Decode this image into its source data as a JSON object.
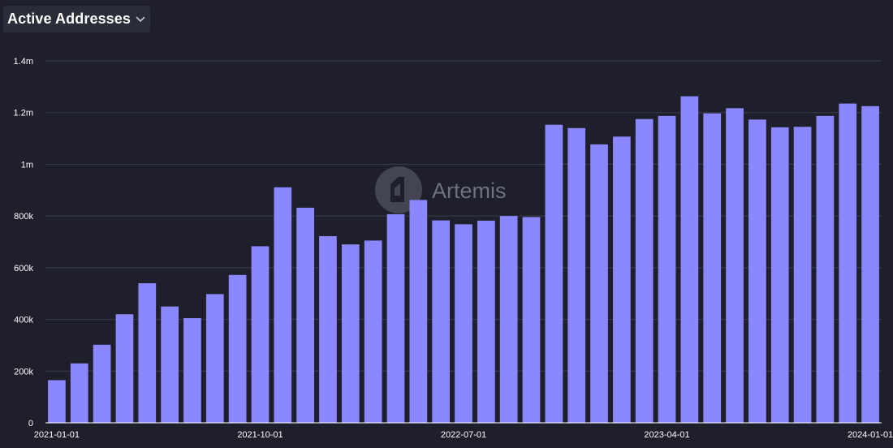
{
  "header": {
    "metric_label": "Active Addresses"
  },
  "icons": {
    "dropdown": "chevron-down-icon",
    "watermark_logo": "artemis-logo-icon"
  },
  "watermark": {
    "text": "Artemis"
  },
  "colors": {
    "background": "#1e1f2a",
    "bar": "#8a87ff",
    "grid": "#3a3c4a",
    "text": "#ffffff"
  },
  "chart_data": {
    "type": "bar",
    "title": "Active Addresses",
    "xlabel": "",
    "ylabel": "",
    "grid": true,
    "legend": "none",
    "ylim": [
      0,
      1400000
    ],
    "yticks": [
      0,
      200000,
      400000,
      600000,
      800000,
      1000000,
      1200000,
      1400000
    ],
    "ytick_labels": [
      "0",
      "200k",
      "400k",
      "600k",
      "800k",
      "1m",
      "1.2m",
      "1.4m"
    ],
    "x_tick_labels": [
      {
        "category": "2021-01-01",
        "label": "2021-01-01"
      },
      {
        "category": "2021-10-01",
        "label": "2021-10-01"
      },
      {
        "category": "2022-07-01",
        "label": "2022-07-01"
      },
      {
        "category": "2023-04-01",
        "label": "2023-04-01"
      },
      {
        "category": "2024-01-01",
        "label": "2024-01-01"
      }
    ],
    "categories": [
      "2021-01-01",
      "2021-02-01",
      "2021-03-01",
      "2021-04-01",
      "2021-05-01",
      "2021-06-01",
      "2021-07-01",
      "2021-08-01",
      "2021-09-01",
      "2021-10-01",
      "2021-11-01",
      "2021-12-01",
      "2022-01-01",
      "2022-02-01",
      "2022-03-01",
      "2022-04-01",
      "2022-05-01",
      "2022-06-01",
      "2022-07-01",
      "2022-08-01",
      "2022-09-01",
      "2022-10-01",
      "2022-11-01",
      "2022-12-01",
      "2023-01-01",
      "2023-02-01",
      "2023-03-01",
      "2023-04-01",
      "2023-05-01",
      "2023-06-01",
      "2023-07-01",
      "2023-08-01",
      "2023-09-01",
      "2023-10-01",
      "2023-11-01",
      "2023-12-01",
      "2024-01-01"
    ],
    "series": [
      {
        "values": [
          165000,
          230000,
          302000,
          420000,
          540000,
          450000,
          405000,
          498000,
          572000,
          683000,
          911000,
          832000,
          722000,
          690000,
          705000,
          807000,
          862000,
          783000,
          768000,
          782000,
          800000,
          796000,
          1153000,
          1140000,
          1077000,
          1107000,
          1175000,
          1187000,
          1263000,
          1197000,
          1217000,
          1173000,
          1143000,
          1145000,
          1187000,
          1235000,
          1225000
        ]
      }
    ]
  }
}
